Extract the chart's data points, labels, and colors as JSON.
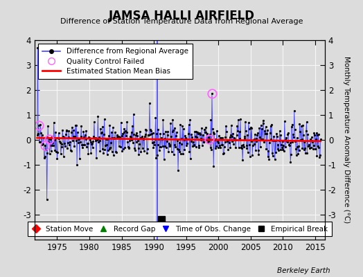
{
  "title": "JAMSA HALLI AIRFIELD",
  "subtitle": "Difference of Station Temperature Data from Regional Average",
  "ylabel_right": "Monthly Temperature Anomaly Difference (°C)",
  "credit": "Berkeley Earth",
  "ylim": [
    -4,
    4
  ],
  "xlim": [
    1971.5,
    2016.5
  ],
  "xticks": [
    1975,
    1980,
    1985,
    1990,
    1995,
    2000,
    2005,
    2010,
    2015
  ],
  "yticks": [
    -3,
    -2,
    -1,
    0,
    1,
    2,
    3,
    4
  ],
  "bg_color": "#dcdcdc",
  "plot_bg_color": "#dcdcdc",
  "main_line_color": "#4444ff",
  "bias_line_color": "red",
  "qc_marker_color": "#ff66ff",
  "seed": 42,
  "n_points": 528,
  "start_year": 1971.917,
  "bias_value": 0.05,
  "time_of_obs_change_year": 1990.5,
  "empirical_break_year": 1991.2,
  "empirical_break_y": -3.2,
  "qc_failed_indices": [
    3,
    15,
    22,
    320,
    325
  ],
  "spike_up_idx": 1,
  "spike_up_val": 3.7,
  "spike_down_idx": 18,
  "spike_down_val": -2.4,
  "spike2_up_idx": 325,
  "spike2_up_val": 1.85,
  "spike2_down_idx": 328,
  "spike2_down_val": -1.05
}
